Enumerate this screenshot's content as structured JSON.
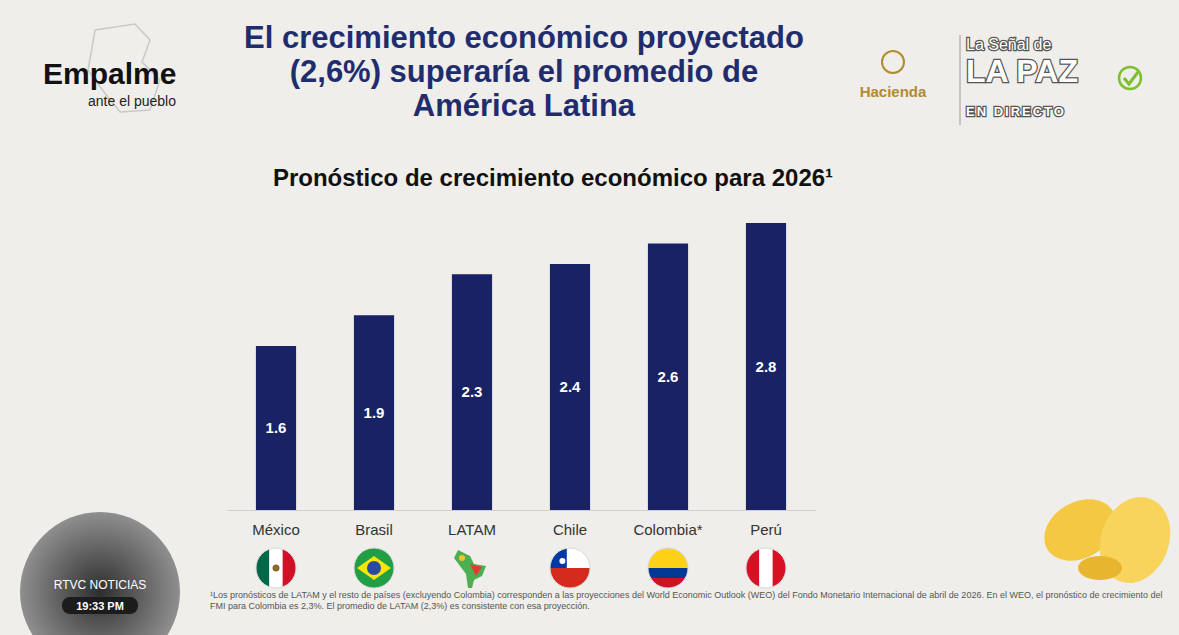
{
  "chart_data": {
    "type": "bar",
    "title": "El crecimiento económico proyectado (2,6%) superaría el promedio de América Latina",
    "subtitle": "Pronóstico de crecimiento económico para 2026¹",
    "categories": [
      "México",
      "Brasil",
      "LATAM",
      "Chile",
      "Colombia*",
      "Perú"
    ],
    "values": [
      1.6,
      1.9,
      2.3,
      2.4,
      2.6,
      2.8
    ],
    "color": "#1a2266",
    "ylim": [
      0,
      2.8
    ],
    "grid": false,
    "data_labels": true,
    "tick_labels": "x",
    "annotations": [
      "Empalme",
      "ante el pueblo",
      "Hacienda",
      "La Señal de",
      "LA PAZ",
      "EN DIRECTO",
      "RTVC NOTICIAS",
      "19:33 PM",
      "¹Los pronósticos de LATAM y el resto de países (excluyendo Colombia) corresponden a las proyecciones del World Economic Outlook (WEO) del Fondo Monetario Internacional de abril de 2026. En el WEO, el pronóstico de crecimiento del FMI para Colombia es 2,3%. El promedio de LATAM (2,3%) es consistente con esa proyección."
    ]
  }
}
